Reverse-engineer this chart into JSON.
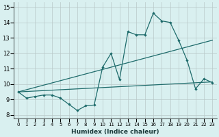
{
  "xlabel": "Humidex (Indice chaleur)",
  "xlim": [
    -0.5,
    23.5
  ],
  "ylim": [
    7.8,
    15.3
  ],
  "yticks": [
    8,
    9,
    10,
    11,
    12,
    13,
    14,
    15
  ],
  "xticks": [
    0,
    1,
    2,
    3,
    4,
    5,
    6,
    7,
    8,
    9,
    10,
    11,
    12,
    13,
    14,
    15,
    16,
    17,
    18,
    19,
    20,
    21,
    22,
    23
  ],
  "background_color": "#d9f0f0",
  "grid_color": "#b8c8c8",
  "line_color": "#1e6b6b",
  "line1_x": [
    0,
    1,
    2,
    3,
    4,
    5,
    6,
    7,
    8,
    9,
    10,
    11,
    12,
    13,
    14,
    15,
    16,
    17,
    18,
    19,
    20,
    21,
    22,
    23
  ],
  "line1_y": [
    9.5,
    9.1,
    9.2,
    9.3,
    9.3,
    9.1,
    8.7,
    8.3,
    8.6,
    8.65,
    11.1,
    12.0,
    10.3,
    13.4,
    13.2,
    13.2,
    14.6,
    14.1,
    14.0,
    12.85,
    11.55,
    9.7,
    10.35,
    10.1
  ],
  "line2_x": [
    0,
    23
  ],
  "line2_y": [
    9.5,
    12.85
  ],
  "line3_x": [
    0,
    23
  ],
  "line3_y": [
    9.5,
    10.15
  ]
}
